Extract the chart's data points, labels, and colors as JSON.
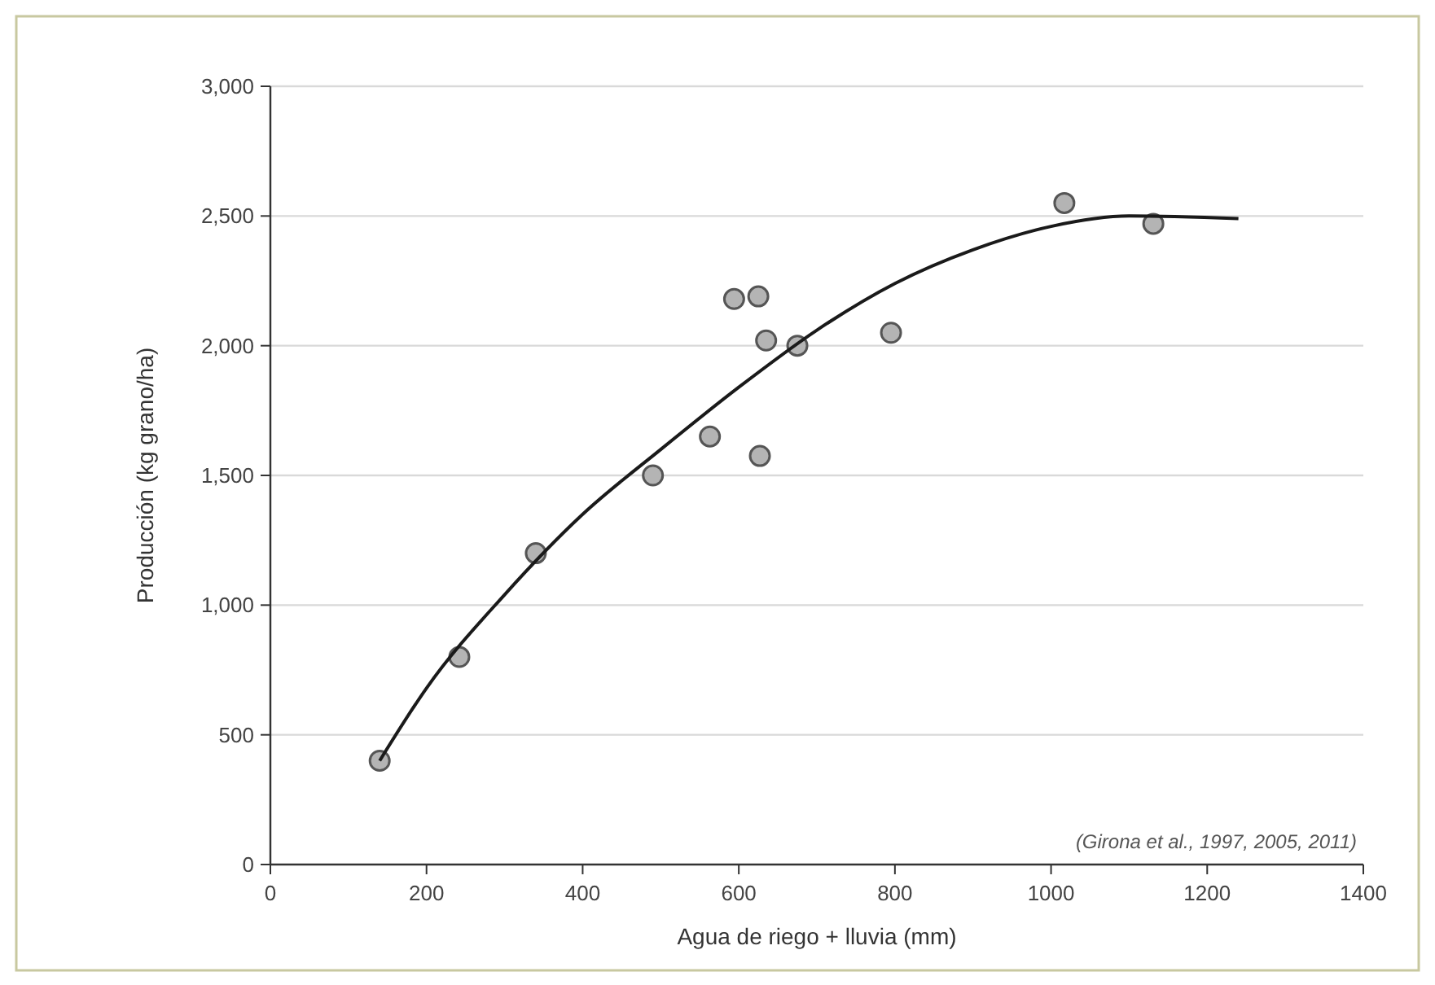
{
  "chart_data": {
    "type": "scatter",
    "xlabel": "Agua de riego + lluvia (mm)",
    "ylabel": "Producción (kg grano/ha)",
    "annotations": [
      "(Girona et al., 1997, 2005, 2011)"
    ],
    "xlim": [
      0,
      1400
    ],
    "xticks": [
      0,
      200,
      400,
      600,
      800,
      1000,
      1200,
      1400
    ],
    "ylim": [
      0,
      3000
    ],
    "yticks": [
      0,
      {
        "value": 500,
        "label": "500"
      },
      {
        "value": 1000,
        "label": "1,000"
      },
      {
        "value": 1500,
        "label": "1,500"
      },
      {
        "value": 2000,
        "label": "2,000"
      },
      {
        "value": 2500,
        "label": "2,500"
      },
      {
        "value": 3000,
        "label": "3,000"
      }
    ],
    "grid": "y",
    "marker": "circle",
    "series": [
      {
        "color": "#b4b4b4",
        "x": [
          140,
          242,
          340,
          490,
          563,
          627,
          594,
          625,
          635,
          675,
          795,
          1017,
          1131
        ],
        "values": [
          400,
          800,
          1200,
          1500,
          1650,
          1575,
          2180,
          2190,
          2020,
          2000,
          2050,
          2550,
          2470
        ]
      },
      {
        "type": "line",
        "color": "#1a1a1a",
        "line_style": "solid",
        "marker": "none",
        "x": [
          140,
          200,
          300,
          400,
          500,
          600,
          700,
          800,
          900,
          1000,
          1100,
          1240
        ],
        "values": [
          400,
          680,
          1040,
          1350,
          1600,
          1840,
          2060,
          2240,
          2370,
          2460,
          2500,
          2490
        ]
      }
    ]
  }
}
